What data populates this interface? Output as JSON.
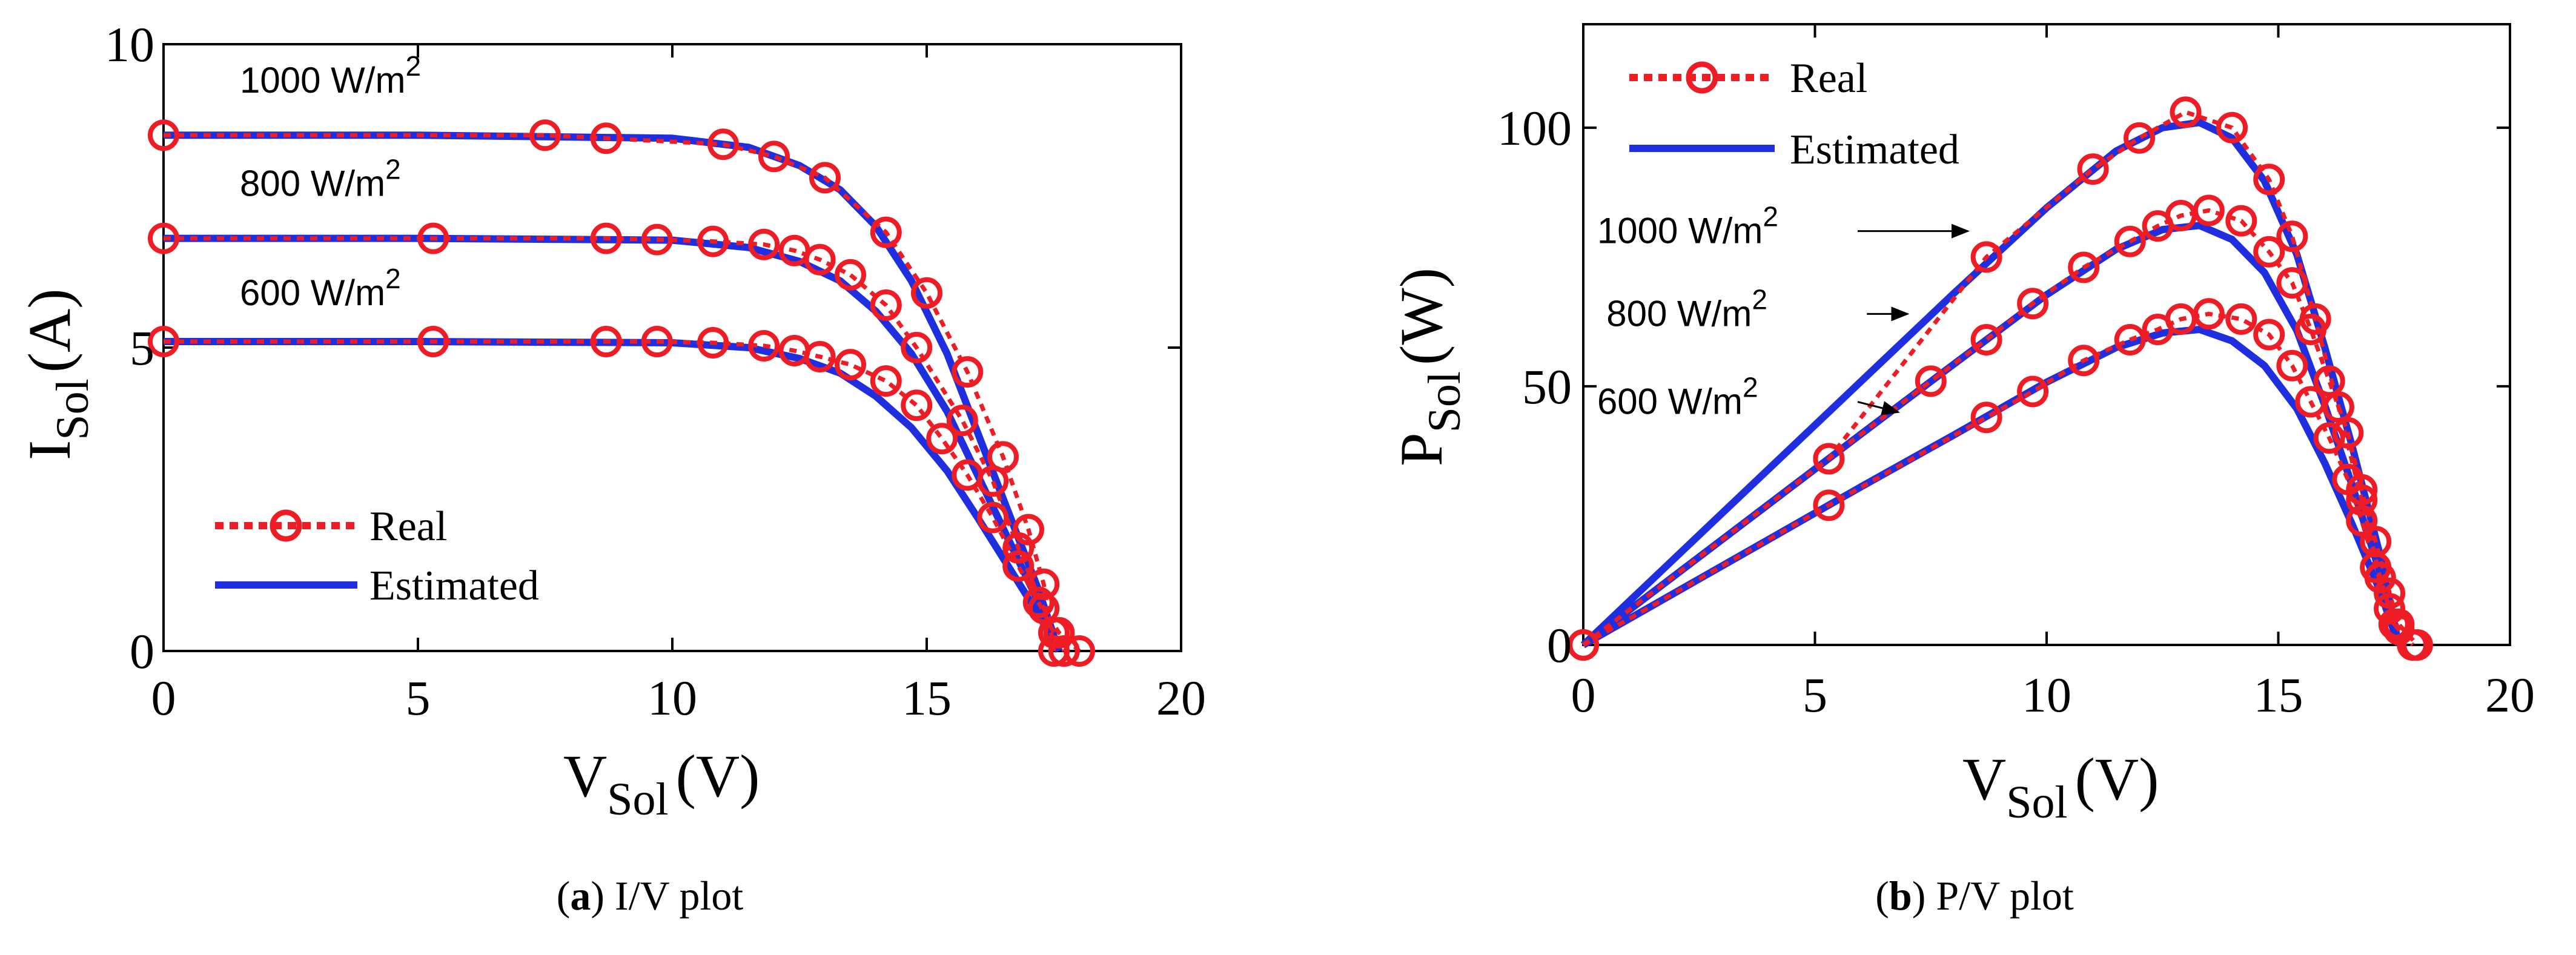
{
  "chart_data": [
    {
      "type": "line",
      "panel": "a",
      "caption_letter": "a",
      "caption_text": "I/V plot",
      "x_axis": {
        "label_main": "V",
        "label_sub": "Sol",
        "label_unit": "(V)",
        "lim": [
          0,
          20
        ],
        "ticks": [
          0,
          5,
          10,
          15,
          20
        ]
      },
      "y_axis": {
        "label_main": "I",
        "label_sub": "Sol",
        "label_unit": "(A)",
        "lim": [
          0,
          10
        ],
        "ticks": [
          0,
          5,
          10
        ]
      },
      "legend": {
        "position": "lower-left",
        "real": "Real",
        "estimated": "Estimated"
      },
      "annotations": [
        {
          "text": "1000 W/m",
          "sup": "2",
          "at": [
            1.5,
            9.4
          ]
        },
        {
          "text": "800 W/m",
          "sup": "2",
          "at": [
            1.5,
            7.7
          ]
        },
        {
          "text": "600 W/m",
          "sup": "2",
          "at": [
            1.5,
            5.9
          ]
        }
      ],
      "series": [
        {
          "name": "1000 W/m2",
          "kind": "estimated",
          "x": [
            0,
            5,
            10,
            11.5,
            12.5,
            13.3,
            14,
            14.7,
            15.4,
            16,
            16.6,
            17.2,
            17.6
          ],
          "y": [
            8.5,
            8.5,
            8.45,
            8.3,
            8.0,
            7.6,
            7.0,
            6.1,
            4.9,
            3.6,
            2.3,
            1.0,
            0
          ]
        },
        {
          "name": "1000 W/m2",
          "kind": "real",
          "x": [
            0,
            7.5,
            8.7,
            11,
            12,
            13,
            14.2,
            15,
            15.8,
            16.5,
            17,
            17.3,
            17.5
          ],
          "y": [
            8.5,
            8.5,
            8.45,
            8.35,
            8.15,
            7.8,
            6.9,
            5.9,
            4.6,
            3.2,
            2.0,
            1.1,
            0
          ]
        },
        {
          "name": "800 W/m2",
          "kind": "estimated",
          "x": [
            0,
            5,
            10,
            11.5,
            12.5,
            13.3,
            14,
            14.7,
            15.4,
            16,
            16.6,
            17.2,
            17.6
          ],
          "y": [
            6.8,
            6.8,
            6.77,
            6.65,
            6.42,
            6.1,
            5.6,
            4.9,
            3.95,
            2.9,
            1.85,
            0.8,
            0
          ]
        },
        {
          "name": "800 W/m2",
          "kind": "real",
          "x": [
            0,
            5.3,
            8.7,
            9.7,
            10.8,
            11.8,
            12.4,
            12.9,
            13.5,
            14.2,
            14.8,
            15.7,
            16.3,
            16.8,
            17.3,
            17.6,
            18.0
          ],
          "y": [
            6.8,
            6.8,
            6.8,
            6.78,
            6.75,
            6.7,
            6.6,
            6.45,
            6.2,
            5.7,
            5.0,
            3.8,
            2.8,
            1.7,
            0.7,
            0.3,
            0
          ]
        },
        {
          "name": "600 W/m2",
          "kind": "estimated",
          "x": [
            0,
            5,
            10,
            11.5,
            12.5,
            13.3,
            14,
            14.7,
            15.4,
            16,
            16.6,
            17.2,
            17.6
          ],
          "y": [
            5.1,
            5.1,
            5.08,
            5.0,
            4.82,
            4.58,
            4.2,
            3.68,
            2.97,
            2.2,
            1.4,
            0.6,
            0
          ]
        },
        {
          "name": "600 W/m2",
          "kind": "real",
          "x": [
            0,
            5.3,
            8.7,
            9.7,
            10.8,
            11.8,
            12.4,
            12.9,
            13.5,
            14.2,
            14.8,
            15.3,
            15.8,
            16.3,
            16.8,
            17.2,
            17.5,
            17.7
          ],
          "y": [
            5.1,
            5.1,
            5.1,
            5.1,
            5.08,
            5.03,
            4.95,
            4.85,
            4.72,
            4.45,
            4.05,
            3.5,
            2.9,
            2.2,
            1.4,
            0.8,
            0.3,
            0
          ]
        }
      ]
    },
    {
      "type": "line",
      "panel": "b",
      "caption_letter": "b",
      "caption_text": "P/V plot",
      "x_axis": {
        "label_main": "V",
        "label_sub": "Sol",
        "label_unit": "(V)",
        "lim": [
          0,
          20
        ],
        "ticks": [
          0,
          5,
          10,
          15,
          20
        ]
      },
      "y_axis": {
        "label_main": "P",
        "label_sub": "Sol",
        "label_unit": "(W)",
        "lim": [
          0,
          120
        ],
        "ticks": [
          0,
          50,
          100
        ]
      },
      "legend": {
        "position": "top-left",
        "real": "Real",
        "estimated": "Estimated"
      },
      "annotations": [
        {
          "text": "1000 W/m",
          "sup": "2",
          "at": [
            0.3,
            80
          ],
          "arrow_to": [
            8.3,
            80
          ]
        },
        {
          "text": "800 W/m",
          "sup": "2",
          "at": [
            0.5,
            64
          ],
          "arrow_to": [
            7.0,
            64
          ]
        },
        {
          "text": "600 W/m",
          "sup": "2",
          "at": [
            0.3,
            47
          ],
          "arrow_to": [
            6.8,
            45
          ]
        }
      ],
      "series": [
        {
          "name": "1000 W/m2",
          "kind": "estimated",
          "x": [
            0,
            2,
            4,
            6,
            8,
            10,
            11.5,
            12.5,
            13.3,
            14,
            14.7,
            15.4,
            16,
            16.6,
            17.2,
            17.6
          ],
          "y": [
            0,
            17,
            34,
            51,
            68,
            84.5,
            95.5,
            100,
            101,
            98,
            89.7,
            75.5,
            57.6,
            38.2,
            17.2,
            0
          ]
        },
        {
          "name": "1000 W/m2",
          "kind": "real",
          "x": [
            0,
            5.3,
            8.7,
            11,
            12,
            13,
            14,
            14.8,
            15.3,
            15.8,
            16.3,
            16.8,
            17.2,
            17.5,
            17.9
          ],
          "y": [
            0,
            36,
            75,
            92,
            98,
            103,
            100,
            90,
            79,
            63,
            46,
            28,
            13,
            4,
            0
          ]
        },
        {
          "name": "800 W/m2",
          "kind": "estimated",
          "x": [
            0,
            2,
            4,
            6,
            8,
            10,
            11.5,
            12.5,
            13.3,
            14,
            14.7,
            15.4,
            16,
            16.6,
            17.2,
            17.6
          ],
          "y": [
            0,
            13.6,
            27.2,
            40.8,
            54.3,
            67.7,
            76.5,
            80.3,
            81.1,
            78.4,
            72,
            60.8,
            46.4,
            30.7,
            13.8,
            0
          ]
        },
        {
          "name": "800 W/m2",
          "kind": "real",
          "x": [
            0,
            5.3,
            7.5,
            8.7,
            9.7,
            10.8,
            11.8,
            12.4,
            12.9,
            13.5,
            14.2,
            14.8,
            15.3,
            15.7,
            16.1,
            16.5,
            16.8,
            17.1,
            17.4,
            17.6,
            18.0
          ],
          "y": [
            0,
            36,
            51,
            59,
            66,
            73,
            78,
            81,
            83,
            84,
            82,
            76,
            70,
            61,
            51,
            41,
            30,
            20,
            10,
            4,
            0
          ]
        },
        {
          "name": "600 W/m2",
          "kind": "estimated",
          "x": [
            0,
            2,
            4,
            6,
            8,
            10,
            11.5,
            12.5,
            13.3,
            14,
            14.7,
            15.4,
            16,
            16.6,
            17.2,
            17.6
          ],
          "y": [
            0,
            10.2,
            20.4,
            30.6,
            40.6,
            50.8,
            57.5,
            60.3,
            61,
            58.8,
            54,
            45.7,
            35.2,
            23.2,
            10.3,
            0
          ]
        },
        {
          "name": "600 W/m2",
          "kind": "real",
          "x": [
            0,
            5.3,
            8.7,
            9.7,
            10.8,
            11.8,
            12.4,
            12.9,
            13.5,
            14.2,
            14.8,
            15.3,
            15.7,
            16.1,
            16.5,
            16.8,
            17.1,
            17.4,
            17.6,
            17.9
          ],
          "y": [
            0,
            27,
            44,
            49,
            55,
            59,
            61,
            63,
            64,
            63,
            60,
            54,
            47,
            40,
            32,
            24,
            15,
            7,
            3,
            0
          ]
        }
      ]
    }
  ],
  "colors": {
    "real": "#ee1c24",
    "estimated": "#1f2fe0",
    "axis": "#000000"
  }
}
